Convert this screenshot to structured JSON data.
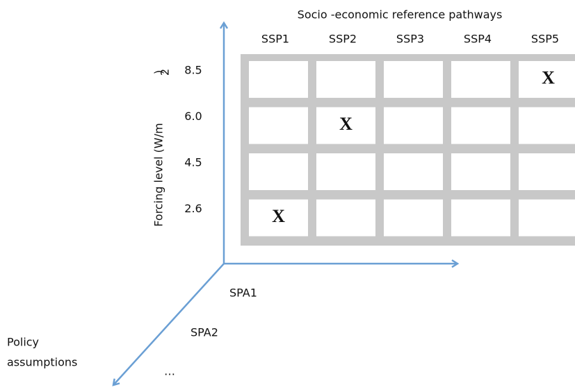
{
  "title": "Socio -economic reference pathways",
  "columns": [
    "SSP1",
    "SSP2",
    "SSP3",
    "SSP4",
    "SSP5"
  ],
  "rows": [
    "8.5",
    "6.0",
    "4.5",
    "2.6"
  ],
  "y_axis_label": {
    "text": "Forcing level (W/m",
    "superscript": "2",
    "close": ")"
  },
  "depth_axis": {
    "label_lines": [
      "Policy",
      "assumptions"
    ],
    "items": [
      "SPA1",
      "SPA2",
      "…"
    ]
  },
  "marks": [
    {
      "row": "8.5",
      "column": "SSP5",
      "text": "X"
    },
    {
      "row": "6.0",
      "column": "SSP2",
      "text": "X"
    },
    {
      "row": "2.6",
      "column": "SSP1",
      "text": "X"
    }
  ]
}
